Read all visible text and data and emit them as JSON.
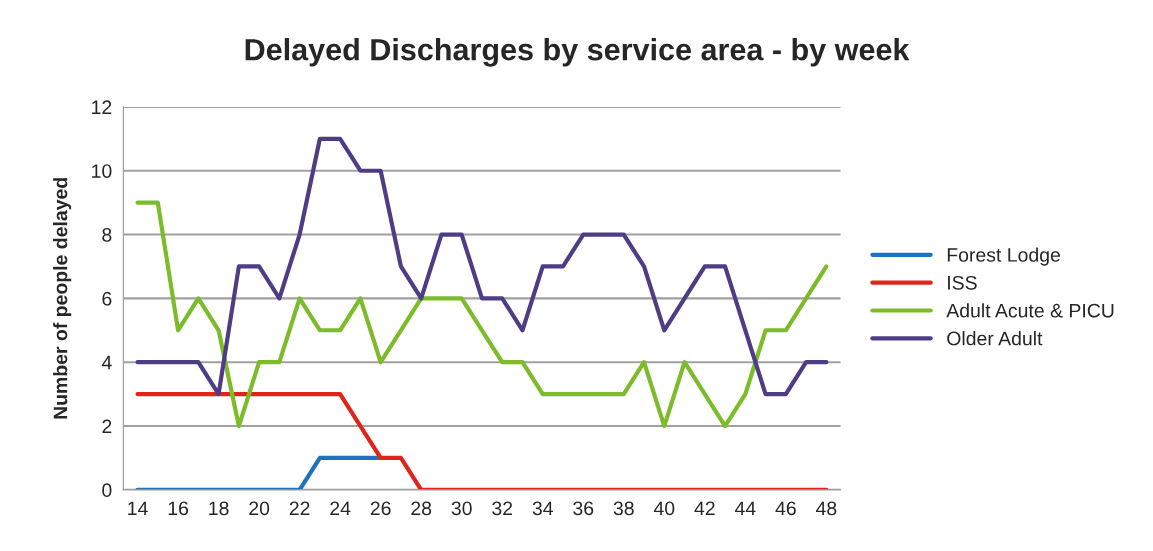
{
  "chart_data": {
    "type": "line",
    "title": "Delayed Discharges by service area - by week",
    "ylabel": "Number of people delayed",
    "x": [
      14,
      15,
      16,
      17,
      18,
      19,
      20,
      21,
      22,
      23,
      24,
      25,
      26,
      27,
      28,
      29,
      30,
      31,
      32,
      33,
      34,
      35,
      36,
      37,
      38,
      39,
      40,
      41,
      42,
      43,
      44,
      45,
      46,
      47,
      48
    ],
    "series": [
      {
        "name": "Forest Lodge",
        "color": "#1f73be",
        "values": [
          0,
          0,
          0,
          0,
          0,
          0,
          0,
          0,
          0,
          1,
          1,
          1,
          1,
          null,
          null,
          null,
          null,
          null,
          null,
          null,
          null,
          null,
          null,
          null,
          null,
          null,
          null,
          null,
          null,
          null,
          null,
          null,
          null,
          null,
          null
        ]
      },
      {
        "name": "ISS",
        "color": "#e0241c",
        "values": [
          3,
          3,
          3,
          3,
          3,
          3,
          3,
          3,
          3,
          3,
          3,
          2,
          1,
          1,
          0,
          0,
          0,
          0,
          0,
          0,
          0,
          0,
          0,
          0,
          0,
          0,
          0,
          0,
          0,
          0,
          0,
          0,
          0,
          0,
          0
        ]
      },
      {
        "name": "Adult Acute & PICU",
        "color": "#7cbc2a",
        "values": [
          9,
          9,
          5,
          6,
          5,
          2,
          4,
          4,
          6,
          5,
          5,
          6,
          4,
          5,
          6,
          6,
          6,
          5,
          4,
          4,
          3,
          3,
          3,
          3,
          3,
          4,
          2,
          4,
          3,
          2,
          3,
          5,
          5,
          6,
          7
        ]
      },
      {
        "name": "Older Adult",
        "color": "#4e3d85",
        "values": [
          4,
          4,
          4,
          4,
          3,
          7,
          7,
          6,
          8,
          11,
          11,
          10,
          10,
          7,
          6,
          8,
          8,
          6,
          6,
          5,
          7,
          7,
          8,
          8,
          8,
          7,
          5,
          6,
          7,
          7,
          5,
          3,
          3,
          4,
          4
        ]
      }
    ],
    "xlim": [
      13.3,
      48.7
    ],
    "xticks": [
      14,
      16,
      18,
      20,
      22,
      24,
      26,
      28,
      30,
      32,
      34,
      36,
      38,
      40,
      42,
      44,
      46,
      48
    ],
    "ylim": [
      0,
      12
    ],
    "yticks": [
      0,
      2,
      4,
      6,
      8,
      10,
      12
    ],
    "grid": "y",
    "legend": "right",
    "marker": "none",
    "line_style": "solid"
  }
}
